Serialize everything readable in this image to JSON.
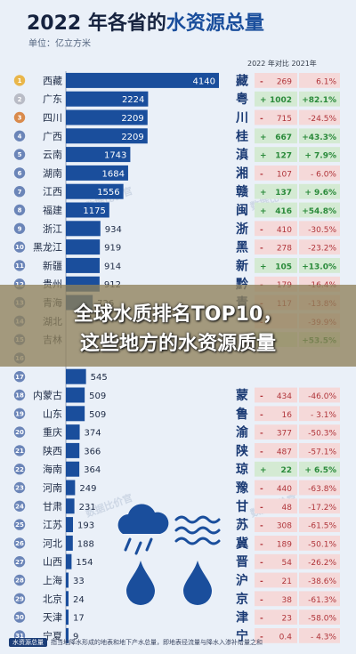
{
  "title": {
    "part1": "2022 年各省的",
    "part2": "水资源总量"
  },
  "unit": "单位：亿立方米",
  "compare_header": "2022 年对比 2021年",
  "overlay": {
    "line1": "全球水质排名TOP10，",
    "line2": "这些地方的水资源质量"
  },
  "footnote": {
    "label": "水资源总量",
    "text": "指当地降水形成的地表和地下产水总量，即地表径流量与降水入渗补给量之和"
  },
  "watermark": "数据比价官",
  "colors": {
    "bar": "#1a4e9c",
    "positive": "#2a8a3a",
    "negative": "#b0353a",
    "rank_badge": "#6b85b8",
    "gold": "#e9b64a",
    "silver": "#b9bcc6",
    "bronze": "#d98a4b"
  },
  "icons": [
    "rain-cloud-icon",
    "water-waves-icon",
    "water-drop-icon"
  ],
  "chart_data": {
    "type": "bar",
    "orientation": "horizontal",
    "title": "2022 年各省的水资源总量",
    "unit": "亿立方米",
    "rows": [
      {
        "rank": "1",
        "province": "西藏",
        "value": 4140,
        "abbr": "藏",
        "sign": "-",
        "diff": "269",
        "pct": "6.1%"
      },
      {
        "rank": "2",
        "province": "广东",
        "value": 2224,
        "abbr": "粤",
        "sign": "+",
        "diff": "1002",
        "pct": "+82.1%"
      },
      {
        "rank": "3",
        "province": "四川",
        "value": 2209,
        "abbr": "川",
        "sign": "-",
        "diff": "715",
        "pct": "-24.5%"
      },
      {
        "rank": "4",
        "province": "广西",
        "value": 2209,
        "abbr": "桂",
        "sign": "+",
        "diff": "667",
        "pct": "+43.3%"
      },
      {
        "rank": "5",
        "province": "云南",
        "value": 1743,
        "abbr": "滇",
        "sign": "+",
        "diff": "127",
        "pct": "+ 7.9%"
      },
      {
        "rank": "6",
        "province": "湖南",
        "value": 1684,
        "abbr": "湘",
        "sign": "-",
        "diff": "107",
        "pct": "- 6.0%"
      },
      {
        "rank": "7",
        "province": "江西",
        "value": 1556,
        "abbr": "赣",
        "sign": "+",
        "diff": "137",
        "pct": "+ 9.6%"
      },
      {
        "rank": "8",
        "province": "福建",
        "value": 1175,
        "abbr": "闽",
        "sign": "+",
        "diff": "416",
        "pct": "+54.8%"
      },
      {
        "rank": "9",
        "province": "浙江",
        "value": 934,
        "abbr": "浙",
        "sign": "-",
        "diff": "410",
        "pct": "-30.5%"
      },
      {
        "rank": "10",
        "province": "黑龙江",
        "value": 919,
        "abbr": "黑",
        "sign": "-",
        "diff": "278",
        "pct": "-23.2%"
      },
      {
        "rank": "11",
        "province": "新疆",
        "value": 914,
        "abbr": "新",
        "sign": "+",
        "diff": "105",
        "pct": "+13.0%"
      },
      {
        "rank": "12",
        "province": "贵州",
        "value": 912,
        "abbr": "黔",
        "sign": "-",
        "diff": "179",
        "pct": "-16.4%"
      },
      {
        "rank": "13",
        "province": "青海",
        "value": 726,
        "abbr": "青",
        "sign": "-",
        "diff": "117",
        "pct": "-13.8%"
      },
      {
        "rank": "14",
        "province": "湖北",
        "value": 0,
        "abbr": "",
        "sign": "-",
        "diff": "",
        "pct": "-39.9%"
      },
      {
        "rank": "15",
        "province": "吉林",
        "value": 0,
        "abbr": "",
        "sign": "+",
        "diff": "",
        "pct": "+53.5%"
      },
      {
        "rank": "16",
        "province": "",
        "value": 0,
        "abbr": "",
        "sign": "",
        "diff": "",
        "pct": ""
      },
      {
        "rank": "17",
        "province": "",
        "value": 545,
        "abbr": "",
        "sign": "",
        "diff": "",
        "pct": ""
      },
      {
        "rank": "18",
        "province": "内蒙古",
        "value": 509,
        "abbr": "蒙",
        "sign": "-",
        "diff": "434",
        "pct": "-46.0%"
      },
      {
        "rank": "19",
        "province": "山东",
        "value": 509,
        "abbr": "鲁",
        "sign": "-",
        "diff": "16",
        "pct": "- 3.1%"
      },
      {
        "rank": "20",
        "province": "重庆",
        "value": 374,
        "abbr": "渝",
        "sign": "-",
        "diff": "377",
        "pct": "-50.3%"
      },
      {
        "rank": "21",
        "province": "陕西",
        "value": 366,
        "abbr": "陕",
        "sign": "-",
        "diff": "487",
        "pct": "-57.1%"
      },
      {
        "rank": "22",
        "province": "海南",
        "value": 364,
        "abbr": "琼",
        "sign": "+",
        "diff": "22",
        "pct": "+ 6.5%"
      },
      {
        "rank": "23",
        "province": "河南",
        "value": 249,
        "abbr": "豫",
        "sign": "-",
        "diff": "440",
        "pct": "-63.8%"
      },
      {
        "rank": "24",
        "province": "甘肃",
        "value": 231,
        "abbr": "甘",
        "sign": "-",
        "diff": "48",
        "pct": "-17.2%"
      },
      {
        "rank": "25",
        "province": "江苏",
        "value": 193,
        "abbr": "苏",
        "sign": "-",
        "diff": "308",
        "pct": "-61.5%"
      },
      {
        "rank": "26",
        "province": "河北",
        "value": 188,
        "abbr": "冀",
        "sign": "-",
        "diff": "189",
        "pct": "-50.1%"
      },
      {
        "rank": "27",
        "province": "山西",
        "value": 154,
        "abbr": "晋",
        "sign": "-",
        "diff": "54",
        "pct": "-26.2%"
      },
      {
        "rank": "28",
        "province": "上海",
        "value": 33,
        "abbr": "沪",
        "sign": "-",
        "diff": "21",
        "pct": "-38.6%"
      },
      {
        "rank": "29",
        "province": "北京",
        "value": 24,
        "abbr": "京",
        "sign": "-",
        "diff": "38",
        "pct": "-61.3%"
      },
      {
        "rank": "30",
        "province": "天津",
        "value": 17,
        "abbr": "津",
        "sign": "-",
        "diff": "23",
        "pct": "-58.0%"
      },
      {
        "rank": "31",
        "province": "宁夏",
        "value": 9,
        "abbr": "宁",
        "sign": "-",
        "diff": "0.4",
        "pct": "- 4.3%"
      }
    ]
  }
}
